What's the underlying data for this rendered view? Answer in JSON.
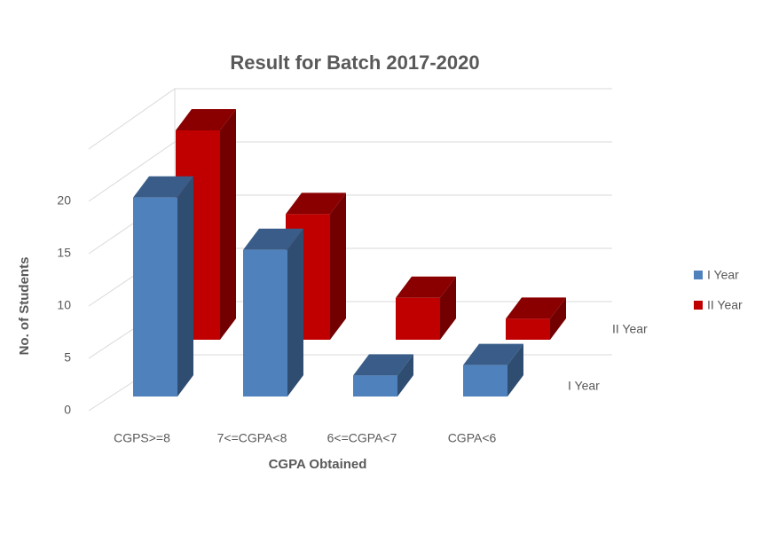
{
  "chart_data": {
    "type": "bar3d",
    "title": "Result for Batch 2017-2020",
    "x_label": "CGPA Obtained",
    "y_label": "No. of Students",
    "categories": [
      "CGPS>=8",
      "7<=CGPA<8",
      "6<=CGPA<7",
      "CGPA<6"
    ],
    "series": [
      {
        "name": "I Year",
        "color": "#4f81bd",
        "values": [
          19,
          14,
          2,
          3
        ]
      },
      {
        "name": "II Year",
        "color": "#c00000",
        "values": [
          20,
          12,
          4,
          2
        ]
      }
    ],
    "ylim": [
      0,
      25
    ],
    "yticks": [
      0,
      5,
      10,
      15,
      20
    ],
    "grid": true,
    "legend": "right"
  }
}
